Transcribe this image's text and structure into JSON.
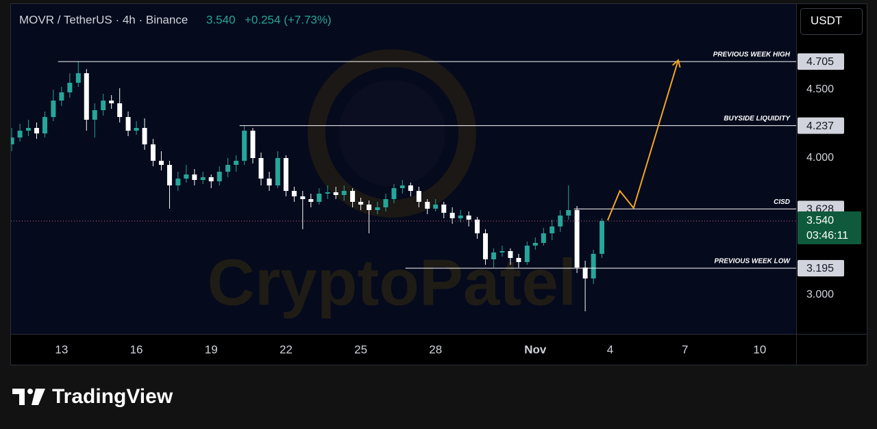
{
  "header": {
    "symbol": "MOVR / TetherUS · 4h · Binance",
    "price": "3.540",
    "change": "+0.254 (+7.73%)"
  },
  "currency_button": "USDT",
  "footer": {
    "brand": "TradingView"
  },
  "chart_data": {
    "type": "candlestick",
    "watermark": "CryptoPatel",
    "x": [
      11.0,
      11.33,
      11.67,
      12.0,
      12.33,
      12.67,
      13.0,
      13.33,
      13.67,
      14.0,
      14.33,
      14.67,
      15.0,
      15.33,
      15.67,
      16.0,
      16.33,
      16.67,
      17.0,
      17.33,
      17.67,
      18.0,
      18.33,
      18.67,
      19.0,
      19.33,
      19.67,
      20.0,
      20.33,
      20.67,
      21.0,
      21.33,
      21.67,
      22.0,
      22.33,
      22.67,
      23.0,
      23.33,
      23.67,
      24.0,
      24.33,
      24.67,
      25.0,
      25.33,
      25.67,
      26.0,
      26.33,
      26.67,
      27.0,
      27.33,
      27.67,
      28.0,
      28.33,
      28.67,
      29.0,
      29.33,
      29.67,
      30.0,
      30.33,
      30.67,
      31.0,
      31.33,
      31.67,
      32.0,
      32.33,
      32.67,
      33.0,
      33.33,
      33.67,
      34.0,
      34.33,
      34.67
    ],
    "open": [
      4.1,
      4.15,
      4.2,
      4.22,
      4.18,
      4.3,
      4.42,
      4.48,
      4.55,
      4.62,
      4.28,
      4.35,
      4.42,
      4.4,
      4.3,
      4.2,
      4.22,
      4.1,
      3.98,
      3.95,
      3.8,
      3.85,
      3.88,
      3.84,
      3.86,
      3.83,
      3.9,
      3.95,
      3.98,
      4.2,
      4.0,
      3.85,
      3.8,
      4.0,
      3.76,
      3.72,
      3.7,
      3.68,
      3.74,
      3.75,
      3.73,
      3.76,
      3.68,
      3.66,
      3.62,
      3.64,
      3.7,
      3.78,
      3.8,
      3.76,
      3.68,
      3.63,
      3.66,
      3.6,
      3.56,
      3.58,
      3.55,
      3.45,
      3.26,
      3.31,
      3.32,
      3.27,
      3.24,
      3.36,
      3.38,
      3.45,
      3.5,
      3.58,
      3.62,
      3.2,
      3.12,
      3.3
    ],
    "high": [
      4.22,
      4.25,
      4.28,
      4.26,
      4.34,
      4.5,
      4.52,
      4.62,
      4.705,
      4.65,
      4.4,
      4.47,
      4.46,
      4.51,
      4.34,
      4.27,
      4.29,
      4.14,
      4.05,
      3.98,
      3.9,
      3.95,
      3.92,
      3.9,
      3.88,
      3.94,
      4.0,
      4.02,
      4.237,
      4.22,
      4.04,
      3.9,
      4.05,
      4.02,
      3.79,
      3.76,
      3.74,
      3.78,
      3.8,
      3.79,
      3.8,
      3.78,
      3.71,
      3.69,
      3.68,
      3.74,
      3.81,
      3.84,
      3.82,
      3.79,
      3.7,
      3.7,
      3.68,
      3.64,
      3.62,
      3.61,
      3.57,
      3.48,
      3.34,
      3.36,
      3.34,
      3.3,
      3.39,
      3.42,
      3.49,
      3.55,
      3.62,
      3.8,
      3.65,
      3.25,
      3.33,
      3.56
    ],
    "low": [
      4.05,
      4.12,
      4.16,
      4.14,
      4.15,
      4.27,
      4.38,
      4.44,
      4.52,
      4.2,
      4.15,
      4.31,
      4.36,
      4.26,
      4.16,
      4.17,
      4.06,
      3.94,
      3.91,
      3.63,
      3.76,
      3.82,
      3.8,
      3.81,
      3.78,
      3.8,
      3.86,
      3.9,
      3.95,
      3.96,
      3.8,
      3.76,
      3.78,
      3.72,
      3.68,
      3.48,
      3.64,
      3.66,
      3.7,
      3.7,
      3.69,
      3.64,
      3.62,
      3.45,
      3.59,
      3.61,
      3.67,
      3.74,
      3.72,
      3.64,
      3.59,
      3.61,
      3.56,
      3.52,
      3.53,
      3.5,
      3.41,
      3.22,
      3.2,
      3.28,
      3.22,
      3.2,
      3.22,
      3.33,
      3.36,
      3.4,
      3.46,
      3.55,
      3.16,
      2.88,
      3.08,
      3.27
    ],
    "close": [
      4.15,
      4.2,
      4.22,
      4.18,
      4.3,
      4.42,
      4.48,
      4.55,
      4.62,
      4.28,
      4.35,
      4.42,
      4.4,
      4.3,
      4.2,
      4.22,
      4.1,
      3.98,
      3.95,
      3.8,
      3.85,
      3.88,
      3.84,
      3.86,
      3.83,
      3.9,
      3.95,
      3.98,
      4.2,
      4.0,
      3.85,
      3.8,
      4.0,
      3.76,
      3.72,
      3.7,
      3.68,
      3.74,
      3.75,
      3.73,
      3.76,
      3.68,
      3.66,
      3.62,
      3.64,
      3.7,
      3.78,
      3.8,
      3.76,
      3.68,
      3.63,
      3.66,
      3.6,
      3.56,
      3.58,
      3.55,
      3.45,
      3.26,
      3.31,
      3.32,
      3.27,
      3.24,
      3.36,
      3.38,
      3.45,
      3.5,
      3.58,
      3.62,
      3.2,
      3.12,
      3.3,
      3.54
    ],
    "up_color": "#26a69a",
    "down_color": "#ffffff",
    "xlim": [
      10.97,
      42.46
    ],
    "ylim": [
      2.715,
      5.125
    ],
    "xticks": [
      13,
      16,
      19,
      22,
      25,
      28,
      {
        "value": 32,
        "label": "Nov"
      },
      {
        "value": 35,
        "label": "4"
      },
      {
        "value": 38,
        "label": "7"
      },
      {
        "value": 41,
        "label": "10"
      }
    ],
    "yticks": [
      {
        "value": 3,
        "label": "3.000"
      },
      {
        "value": 4,
        "label": "4.000"
      },
      {
        "value": 4.5,
        "label": "4.500"
      }
    ],
    "grid": false,
    "levels": [
      {
        "name": "PREVIOUS WEEK HIGH",
        "value": 4.705,
        "label": "4.705",
        "x_start": 12.86
      },
      {
        "name": "BUYSIDE LIQUIDITY",
        "value": 4.237,
        "label": "4.237",
        "x_start": 20.14
      },
      {
        "name": "CISD",
        "value": 3.628,
        "label": "3.628",
        "x_start": 33.55
      },
      {
        "name": "PREVIOUS WEEK LOW",
        "value": 3.195,
        "label": "3.195",
        "x_start": 26.79
      }
    ],
    "last_price": {
      "value": 3.54,
      "label": "3.540",
      "countdown": "03:46:11",
      "color": "#0f5a3c"
    },
    "projection": {
      "color": "#f5a623",
      "x": [
        34.9,
        35.39,
        35.94,
        37.73
      ],
      "values": [
        3.545,
        3.76,
        3.635,
        4.715
      ]
    }
  }
}
